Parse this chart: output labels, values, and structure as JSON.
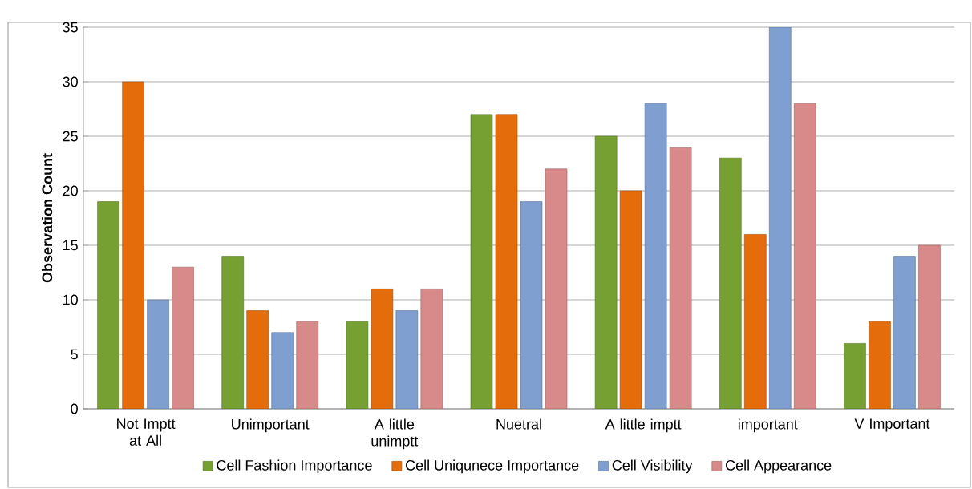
{
  "chart_data": {
    "type": "bar",
    "ylabel": "Observation Count",
    "categories": [
      "Not Imptt at All",
      "Unimportant",
      "A little unimptt",
      "Nuetral",
      "A little imptt",
      "important",
      "V Important"
    ],
    "series": [
      {
        "name": "Cell Fashion Importance",
        "color": "#77a033",
        "values": [
          19,
          14,
          8,
          27,
          25,
          23,
          6
        ]
      },
      {
        "name": "Cell Uniqunece Importance",
        "color": "#e46c0a",
        "values": [
          30,
          9,
          11,
          27,
          20,
          16,
          8
        ]
      },
      {
        "name": "Cell Visibility",
        "color": "#7f9fd0",
        "values": [
          10,
          7,
          9,
          19,
          28,
          35,
          14
        ]
      },
      {
        "name": "Cell Appearance",
        "color": "#d88a8a",
        "values": [
          13,
          8,
          11,
          22,
          24,
          28,
          15
        ]
      }
    ],
    "ylim": [
      0,
      35
    ],
    "yticks": [
      0,
      5,
      10,
      15,
      20,
      25,
      30,
      35
    ],
    "grid": "y",
    "legend": "bottom"
  }
}
